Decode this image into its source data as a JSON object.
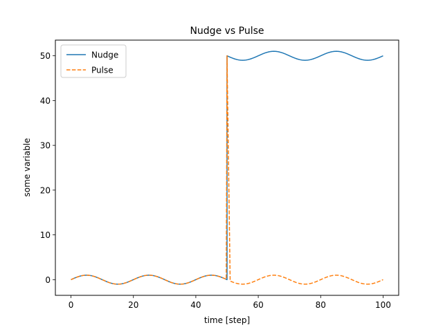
{
  "chart_data": {
    "type": "line",
    "title": "Nudge vs Pulse",
    "xlabel": "time [step]",
    "ylabel": "some variable",
    "xlim": [
      -5,
      105
    ],
    "ylim": [
      -3.5,
      53.5
    ],
    "xticks": [
      0,
      20,
      40,
      60,
      80,
      100
    ],
    "yticks": [
      0,
      10,
      20,
      30,
      40,
      50
    ],
    "legend": "top-left",
    "grid": false,
    "series": [
      {
        "name": "Nudge",
        "color": "#1f77b4",
        "style": "solid",
        "model": "sin(2*pi*t/20) + 50 for t>=50",
        "x": [
          0,
          5,
          10,
          15,
          20,
          25,
          30,
          35,
          40,
          45,
          50,
          55,
          60,
          65,
          70,
          75,
          80,
          85,
          90,
          95,
          100
        ],
        "y": [
          0,
          1,
          0,
          -1,
          0,
          1,
          0,
          -1,
          0,
          1,
          50,
          49,
          50,
          51,
          50,
          49,
          50,
          51,
          50,
          49,
          50
        ]
      },
      {
        "name": "Pulse",
        "color": "#ff7f0e",
        "style": "dashed",
        "model": "sin(2*pi*t/20) + 50 for t==50",
        "x": [
          0,
          5,
          10,
          15,
          20,
          25,
          30,
          35,
          40,
          45,
          50,
          51,
          55,
          60,
          65,
          70,
          75,
          80,
          85,
          90,
          95,
          100
        ],
        "y": [
          0,
          1,
          0,
          -1,
          0,
          1,
          0,
          -1,
          0,
          1,
          50,
          -0.3,
          -1,
          0,
          1,
          0,
          -1,
          0,
          1,
          0,
          -1,
          0
        ]
      }
    ]
  }
}
